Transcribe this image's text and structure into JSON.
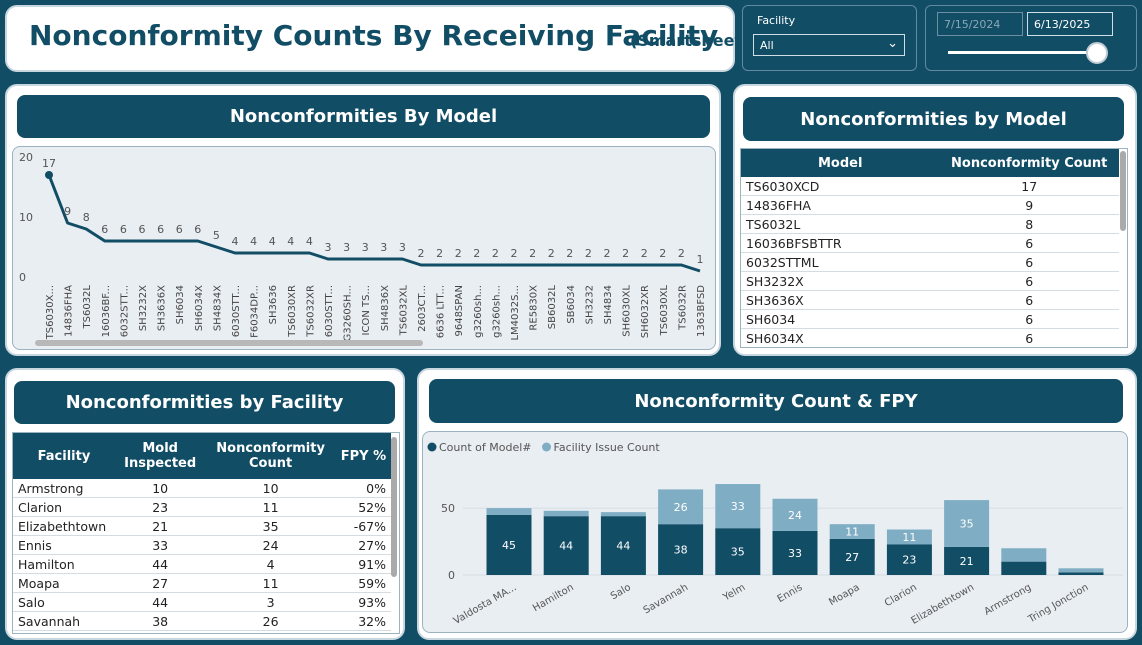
{
  "header": {
    "title": "Nonconformity Counts By Receiving Facility",
    "subtitle": "(Smartsheet)"
  },
  "filters": {
    "facility_label": "Facility",
    "facility_value": "All",
    "start_date": "7/15/2024",
    "end_date": "6/13/2025"
  },
  "model_table": {
    "title": "Nonconformities by Model",
    "columns": [
      "Model",
      "Nonconformity Count"
    ],
    "rows": [
      [
        "TS6030XCD",
        17
      ],
      [
        "14836FHA",
        9
      ],
      [
        "TS6032L",
        8
      ],
      [
        "16036BFSBTTR",
        6
      ],
      [
        "6032STTML",
        6
      ],
      [
        "SH3232X",
        6
      ],
      [
        "SH3636X",
        6
      ],
      [
        "SH6034",
        6
      ],
      [
        "SH6034X",
        6
      ]
    ]
  },
  "facility_table": {
    "title": "Nonconformities by Facility",
    "columns": [
      "Facility",
      "Mold Inspected",
      "Nonconformity Count",
      "FPY %"
    ],
    "rows": [
      [
        "Armstrong",
        10,
        10,
        "0%"
      ],
      [
        "Clarion",
        23,
        11,
        "52%"
      ],
      [
        "Elizabethtown",
        21,
        35,
        "-67%"
      ],
      [
        "Ennis",
        33,
        24,
        "27%"
      ],
      [
        "Hamilton",
        44,
        4,
        "91%"
      ],
      [
        "Moapa",
        27,
        11,
        "59%"
      ],
      [
        "Salo",
        44,
        3,
        "93%"
      ],
      [
        "Savannah",
        38,
        26,
        "32%"
      ]
    ]
  },
  "chart_data": [
    {
      "type": "line",
      "title": "Nonconformities By Model",
      "color": "#124d66",
      "categories": [
        "TS6030X...",
        "14836FHA",
        "TS6032L",
        "16036BF...",
        "6032STT...",
        "SH3232X",
        "SH3636X",
        "SH6034",
        "SH6034X",
        "SH4834X",
        "6030STT...",
        "F6034DP...",
        "SH3636",
        "TS6030XR",
        "TS6032XR",
        "6030STT...",
        "G3260SH...",
        "ICON TS...",
        "SH4836X",
        "TS6032XL",
        "2603CT...",
        "6636 LTT...",
        "9648SPAN",
        "g3260sh...",
        "g3260sh...",
        "LM4032S...",
        "RE5830X",
        "SB6032L",
        "SB6034",
        "SH3232",
        "SH4834",
        "SH6030XL",
        "SH6032XR",
        "TS6030XL",
        "TS6032R",
        "1363BFSD"
      ],
      "values": [
        17,
        9,
        8,
        6,
        6,
        6,
        6,
        6,
        6,
        5,
        4,
        4,
        4,
        4,
        4,
        3,
        3,
        3,
        3,
        3,
        2,
        2,
        2,
        2,
        2,
        2,
        2,
        2,
        2,
        2,
        2,
        2,
        2,
        2,
        2,
        1
      ],
      "ylim": [
        0,
        20
      ],
      "yticks": [
        0,
        10,
        20
      ]
    },
    {
      "type": "stacked_bar",
      "title": "Nonconformity Count & FPY",
      "categories": [
        "Valdosta MA...",
        "Hamilton",
        "Salo",
        "Savannah",
        "Yelm",
        "Ennis",
        "Moapa",
        "Clarion",
        "Elizabethtown",
        "Armstrong",
        "Tring Jonction"
      ],
      "series": [
        {
          "name": "Count of Model#",
          "color": "#124d66",
          "values": [
            45,
            44,
            44,
            38,
            35,
            33,
            27,
            23,
            21,
            10,
            2
          ]
        },
        {
          "name": "Facility Issue Count",
          "color": "#7fadc4",
          "values": [
            5,
            4,
            3,
            26,
            33,
            24,
            11,
            11,
            35,
            10,
            3
          ]
        }
      ],
      "ylim": [
        0,
        80
      ],
      "yticks": [
        0,
        50
      ]
    }
  ]
}
